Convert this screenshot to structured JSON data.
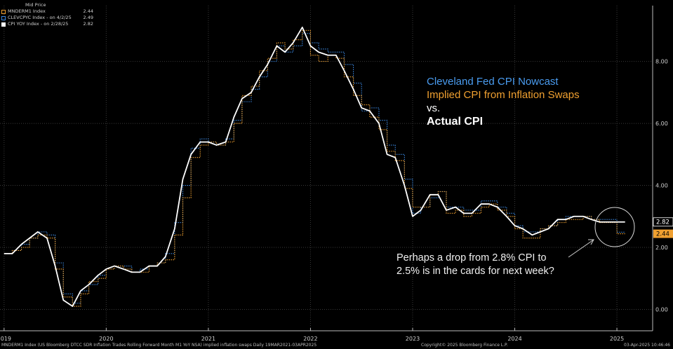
{
  "legend": {
    "header": "Mid Price",
    "items": [
      {
        "name": "MNDERM1 Index",
        "value": "2.44",
        "color": "#f0a030"
      },
      {
        "name": "CLEVCPYC Index -  on 4/2/25",
        "value": "2.49",
        "color": "#3a87e0"
      },
      {
        "name": "CPI YOY Index -  on 2/28/25",
        "value": "2.82",
        "color": "#ffffff"
      }
    ]
  },
  "title": {
    "line1": "Cleveland Fed CPI Nowcast",
    "line2": "Implied CPI from Inflation Swaps",
    "line3": "vs.",
    "line4": "Actual CPI"
  },
  "annotation": {
    "line1": "Perhaps a drop from 2.8% CPI to",
    "line2": "2.5% is in the cards for next week?"
  },
  "footer": {
    "left": "MNDERM1 Index (US Bloomberg DTCC SDR Inflation Trades Rolling Forward Month M1 YoY NSA) implied inflation swaps  Daily 19MAR2021-03APR2025",
    "center": "Copyright© 2025 Bloomberg Finance L.P.",
    "right": "03-Apr-2025 10:46:46"
  },
  "colors": {
    "swaps": "#f0a030",
    "nowcast": "#3a87e0",
    "cpi": "#ffffff",
    "title_nowcast": "#4a9cf0",
    "title_swaps": "#f0a030"
  },
  "chart_data": {
    "type": "line",
    "xlim": [
      2018.96,
      2025.35
    ],
    "ylim": [
      -0.6,
      9.8
    ],
    "y_ticks": [
      0.0,
      2.0,
      4.0,
      6.0,
      8.0
    ],
    "y_tick_labels": [
      "0.00",
      "2.00",
      "4.00",
      "6.00",
      "8.00"
    ],
    "x_tick_labels": [
      "2019",
      "2020",
      "2021",
      "2022",
      "2023",
      "2024",
      "2025"
    ],
    "x_tick_positions": [
      2019.0,
      2020.0,
      2021.0,
      2022.0,
      2023.0,
      2024.0,
      2025.0
    ],
    "last_value_labels": [
      {
        "series": "CPI YOY Index",
        "value": "2.82"
      },
      {
        "series": "MNDERM1 Index",
        "value": "2.44"
      }
    ],
    "grid": true,
    "legend_position": "top-left",
    "series": [
      {
        "name": "CPI YOY Index",
        "style": "solid",
        "x": [
          2019.0,
          2019.08,
          2019.17,
          2019.25,
          2019.33,
          2019.42,
          2019.5,
          2019.58,
          2019.67,
          2019.75,
          2019.83,
          2019.92,
          2020.0,
          2020.08,
          2020.17,
          2020.25,
          2020.33,
          2020.42,
          2020.5,
          2020.58,
          2020.67,
          2020.75,
          2020.83,
          2020.92,
          2021.0,
          2021.08,
          2021.17,
          2021.25,
          2021.33,
          2021.42,
          2021.5,
          2021.58,
          2021.67,
          2021.75,
          2021.83,
          2021.92,
          2022.0,
          2022.08,
          2022.17,
          2022.25,
          2022.33,
          2022.42,
          2022.5,
          2022.58,
          2022.67,
          2022.75,
          2022.83,
          2022.92,
          2023.0,
          2023.08,
          2023.17,
          2023.25,
          2023.33,
          2023.42,
          2023.5,
          2023.58,
          2023.67,
          2023.75,
          2023.83,
          2023.92,
          2024.0,
          2024.08,
          2024.17,
          2024.25,
          2024.33,
          2024.42,
          2024.5,
          2024.58,
          2024.67,
          2024.75,
          2024.83,
          2024.92,
          2025.0,
          2025.08
        ],
        "y": [
          1.8,
          1.8,
          2.1,
          2.3,
          2.5,
          2.3,
          1.4,
          0.3,
          0.1,
          0.6,
          0.8,
          1.1,
          1.3,
          1.4,
          1.3,
          1.2,
          1.2,
          1.4,
          1.4,
          1.7,
          2.6,
          4.2,
          5.0,
          5.4,
          5.4,
          5.3,
          5.4,
          6.2,
          6.8,
          7.0,
          7.5,
          7.9,
          8.5,
          8.3,
          8.6,
          9.1,
          8.5,
          8.3,
          8.2,
          8.2,
          7.7,
          7.1,
          6.5,
          6.4,
          6.0,
          5.0,
          4.9,
          4.0,
          3.0,
          3.2,
          3.7,
          3.7,
          3.2,
          3.3,
          3.1,
          3.1,
          3.4,
          3.4,
          3.3,
          3.0,
          2.7,
          2.6,
          2.4,
          2.5,
          2.6,
          2.9,
          2.9,
          3.0,
          3.0,
          2.9,
          2.82,
          2.82,
          2.82,
          2.82
        ]
      },
      {
        "name": "MNDERM1 Index",
        "style": "dotted-step",
        "x": [
          2019.0,
          2019.08,
          2019.17,
          2019.25,
          2019.33,
          2019.42,
          2019.5,
          2019.58,
          2019.67,
          2019.75,
          2019.83,
          2019.92,
          2020.0,
          2020.08,
          2020.17,
          2020.25,
          2020.33,
          2020.42,
          2020.5,
          2020.58,
          2020.67,
          2020.75,
          2020.83,
          2020.92,
          2021.0,
          2021.08,
          2021.17,
          2021.25,
          2021.33,
          2021.42,
          2021.5,
          2021.58,
          2021.67,
          2021.75,
          2021.83,
          2021.92,
          2022.0,
          2022.08,
          2022.17,
          2022.25,
          2022.33,
          2022.42,
          2022.5,
          2022.58,
          2022.67,
          2022.75,
          2022.83,
          2022.92,
          2023.0,
          2023.08,
          2023.17,
          2023.25,
          2023.33,
          2023.42,
          2023.5,
          2023.58,
          2023.67,
          2023.75,
          2023.83,
          2023.92,
          2024.0,
          2024.08,
          2024.17,
          2024.25,
          2024.33,
          2024.42,
          2024.5,
          2024.58,
          2024.67,
          2024.75,
          2024.83,
          2024.92,
          2025.0,
          2025.08
        ],
        "y": [
          1.8,
          1.9,
          2.0,
          2.3,
          2.4,
          2.3,
          1.3,
          0.4,
          0.1,
          0.5,
          0.9,
          1.0,
          1.3,
          1.4,
          1.3,
          1.2,
          1.2,
          1.4,
          1.5,
          1.6,
          2.4,
          3.6,
          4.9,
          5.3,
          5.4,
          5.3,
          5.4,
          6.0,
          6.9,
          7.2,
          7.7,
          8.1,
          8.6,
          8.4,
          8.7,
          9.0,
          8.2,
          8.0,
          8.2,
          8.1,
          7.5,
          6.9,
          6.6,
          6.2,
          5.8,
          5.1,
          4.8,
          3.9,
          3.3,
          3.3,
          3.7,
          3.8,
          3.1,
          3.2,
          3.0,
          3.1,
          3.3,
          3.4,
          3.2,
          3.0,
          2.6,
          2.3,
          2.3,
          2.6,
          2.7,
          2.8,
          2.9,
          2.9,
          3.0,
          2.9,
          2.8,
          2.8,
          2.44,
          2.44
        ]
      },
      {
        "name": "CLEVCPYC Index",
        "style": "dotted-step",
        "x": [
          2019.0,
          2019.08,
          2019.17,
          2019.25,
          2019.33,
          2019.42,
          2019.5,
          2019.58,
          2019.67,
          2019.75,
          2019.83,
          2019.92,
          2020.0,
          2020.08,
          2020.17,
          2020.25,
          2020.33,
          2020.42,
          2020.5,
          2020.58,
          2020.67,
          2020.75,
          2020.83,
          2020.92,
          2021.0,
          2021.08,
          2021.17,
          2021.25,
          2021.33,
          2021.42,
          2021.5,
          2021.58,
          2021.67,
          2021.75,
          2021.83,
          2021.92,
          2022.0,
          2022.08,
          2022.17,
          2022.25,
          2022.33,
          2022.42,
          2022.5,
          2022.58,
          2022.67,
          2022.75,
          2022.83,
          2022.92,
          2023.0,
          2023.08,
          2023.17,
          2023.25,
          2023.33,
          2023.42,
          2023.5,
          2023.58,
          2023.67,
          2023.75,
          2023.83,
          2023.92,
          2024.0,
          2024.08,
          2024.17,
          2024.25,
          2024.33,
          2024.42,
          2024.5,
          2024.58,
          2024.67,
          2024.75,
          2024.83,
          2024.92,
          2025.0,
          2025.08
        ],
        "y": [
          1.8,
          1.9,
          2.1,
          2.3,
          2.5,
          2.4,
          1.5,
          0.5,
          0.2,
          0.6,
          0.8,
          1.1,
          1.3,
          1.4,
          1.4,
          1.2,
          1.3,
          1.4,
          1.5,
          1.8,
          2.8,
          4.0,
          5.2,
          5.5,
          5.4,
          5.3,
          5.5,
          6.1,
          6.7,
          7.1,
          7.5,
          8.0,
          8.5,
          8.3,
          8.5,
          8.9,
          8.6,
          8.4,
          8.3,
          8.3,
          7.9,
          7.3,
          6.4,
          6.5,
          6.1,
          5.3,
          5.0,
          4.2,
          3.1,
          3.3,
          3.6,
          3.8,
          3.3,
          3.3,
          3.2,
          3.2,
          3.5,
          3.5,
          3.3,
          3.1,
          2.7,
          2.5,
          2.5,
          2.6,
          2.7,
          2.9,
          3.0,
          3.0,
          3.0,
          2.9,
          2.9,
          2.9,
          2.49,
          2.49
        ]
      }
    ]
  }
}
